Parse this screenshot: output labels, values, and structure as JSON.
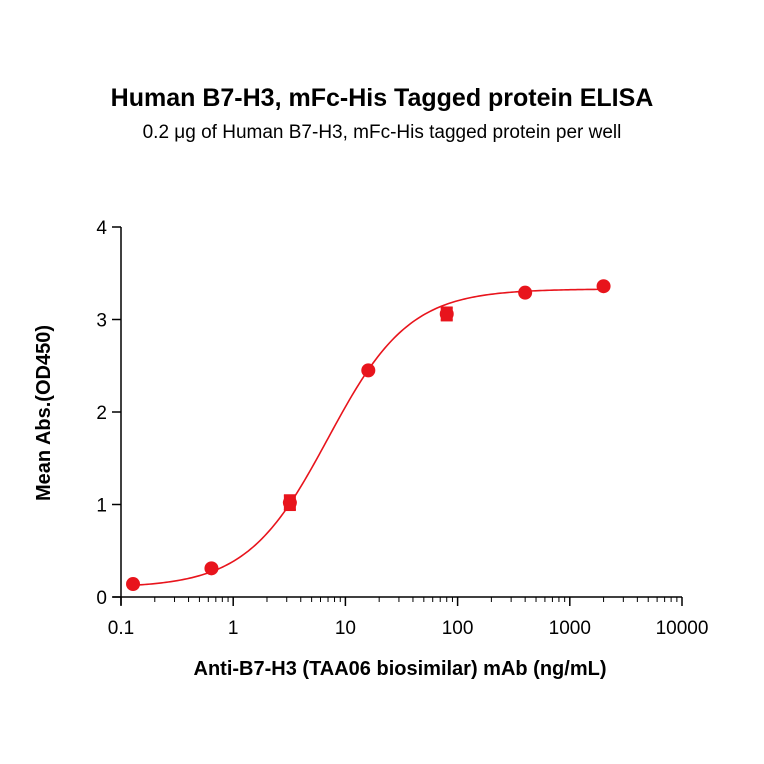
{
  "chart_data": {
    "type": "scatter",
    "title": "Human B7-H3, mFc-His Tagged protein ELISA",
    "subtitle": "0.2 μg of Human B7-H3, mFc-His tagged protein per well",
    "xlabel": "Anti-B7-H3 (TAA06 biosimilar) mAb (ng/mL)",
    "ylabel": "Mean Abs.(OD450)",
    "x_scale": "log",
    "xlim": [
      0.1,
      10000
    ],
    "ylim": [
      0,
      4
    ],
    "x_ticks": [
      0.1,
      1,
      10,
      100,
      1000,
      10000
    ],
    "x_tick_labels": [
      "0.1",
      "1",
      "10",
      "100",
      "1000",
      "10000"
    ],
    "y_ticks": [
      0,
      1,
      2,
      3,
      4
    ],
    "y_tick_labels": [
      "0",
      "1",
      "2",
      "3",
      "4"
    ],
    "grid": false,
    "legend": "none",
    "color": "#e8141c",
    "points": [
      {
        "x": 0.128,
        "y": 0.14,
        "err": 0.0
      },
      {
        "x": 0.64,
        "y": 0.31,
        "err": 0.0
      },
      {
        "x": 3.2,
        "y": 1.02,
        "err": 0.08
      },
      {
        "x": 16,
        "y": 2.45,
        "err": 0.0
      },
      {
        "x": 80,
        "y": 3.06,
        "err": 0.07
      },
      {
        "x": 400,
        "y": 3.29,
        "err": 0.0
      },
      {
        "x": 2000,
        "y": 3.36,
        "err": 0.0
      }
    ],
    "fit_curve": {
      "model": "4PL",
      "bottom": 0.1,
      "top": 3.33,
      "ec50": 7.0,
      "hill": 1.2
    }
  }
}
